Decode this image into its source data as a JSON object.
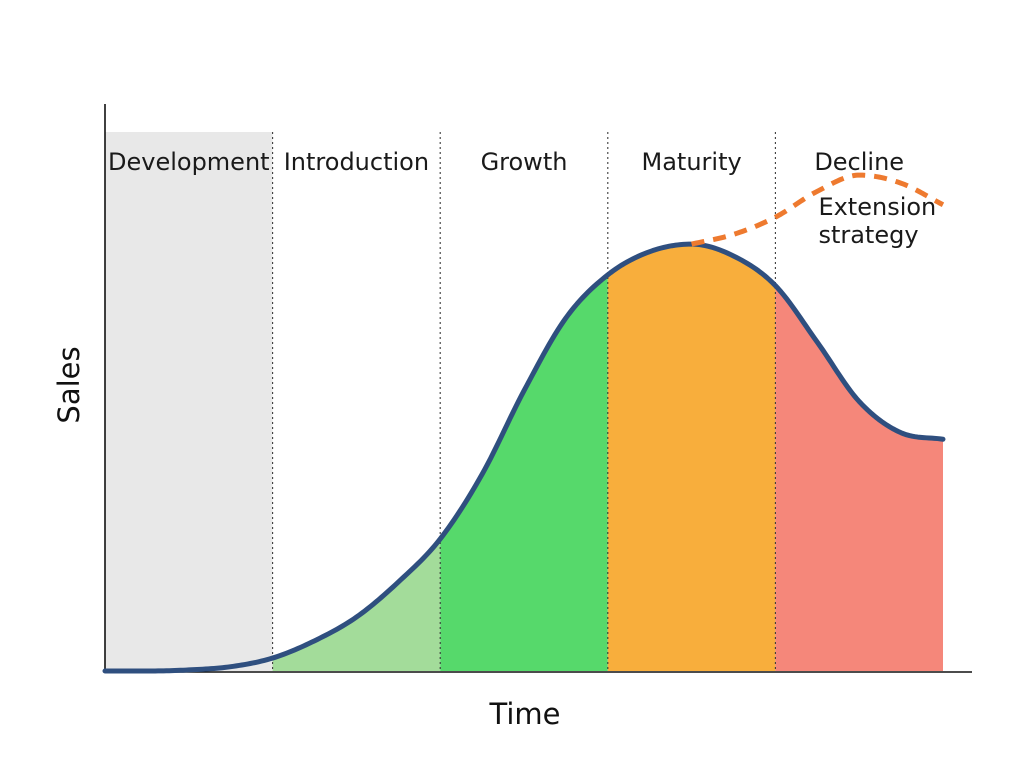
{
  "chart_data": {
    "type": "area",
    "xlabel": "Time",
    "ylabel": "Sales",
    "xlim": [
      0,
      5
    ],
    "ylim": [
      0,
      1
    ],
    "stages": [
      {
        "label": "Development",
        "start": 0,
        "end": 1,
        "color": "#e8e8e8"
      },
      {
        "label": "Introduction",
        "start": 1,
        "end": 2,
        "color": "#a3dc9a"
      },
      {
        "label": "Growth",
        "start": 2,
        "end": 3,
        "color": "#56d96b"
      },
      {
        "label": "Maturity",
        "start": 3,
        "end": 4,
        "color": "#f8ae3c"
      },
      {
        "label": "Decline",
        "start": 4,
        "end": 5,
        "color": "#f5877a"
      }
    ],
    "series": [
      {
        "values": [
          [
            0.0,
            0.0
          ],
          [
            0.25,
            0.0
          ],
          [
            0.5,
            0.002
          ],
          [
            0.75,
            0.008
          ],
          [
            1.0,
            0.024
          ],
          [
            1.25,
            0.056
          ],
          [
            1.5,
            0.1
          ],
          [
            1.75,
            0.165
          ],
          [
            2.0,
            0.245
          ],
          [
            2.25,
            0.365
          ],
          [
            2.5,
            0.52
          ],
          [
            2.75,
            0.655
          ],
          [
            3.0,
            0.735
          ],
          [
            3.25,
            0.778
          ],
          [
            3.5,
            0.792
          ],
          [
            3.75,
            0.77
          ],
          [
            4.0,
            0.715
          ],
          [
            4.25,
            0.61
          ],
          [
            4.5,
            0.5
          ],
          [
            4.75,
            0.442
          ],
          [
            5.0,
            0.43
          ]
        ],
        "color": "#2f4f7f"
      },
      {
        "values": [
          [
            3.5,
            0.792
          ],
          [
            3.75,
            0.81
          ],
          [
            4.0,
            0.842
          ],
          [
            4.25,
            0.89
          ],
          [
            4.5,
            0.92
          ],
          [
            4.75,
            0.905
          ],
          [
            5.0,
            0.865
          ]
        ],
        "color": "#ee7a2f",
        "style": "dashed"
      }
    ],
    "annotations": [
      {
        "text": "Extension\nstrategy",
        "x": 4.4,
        "y": 0.82
      }
    ],
    "grid": false
  }
}
